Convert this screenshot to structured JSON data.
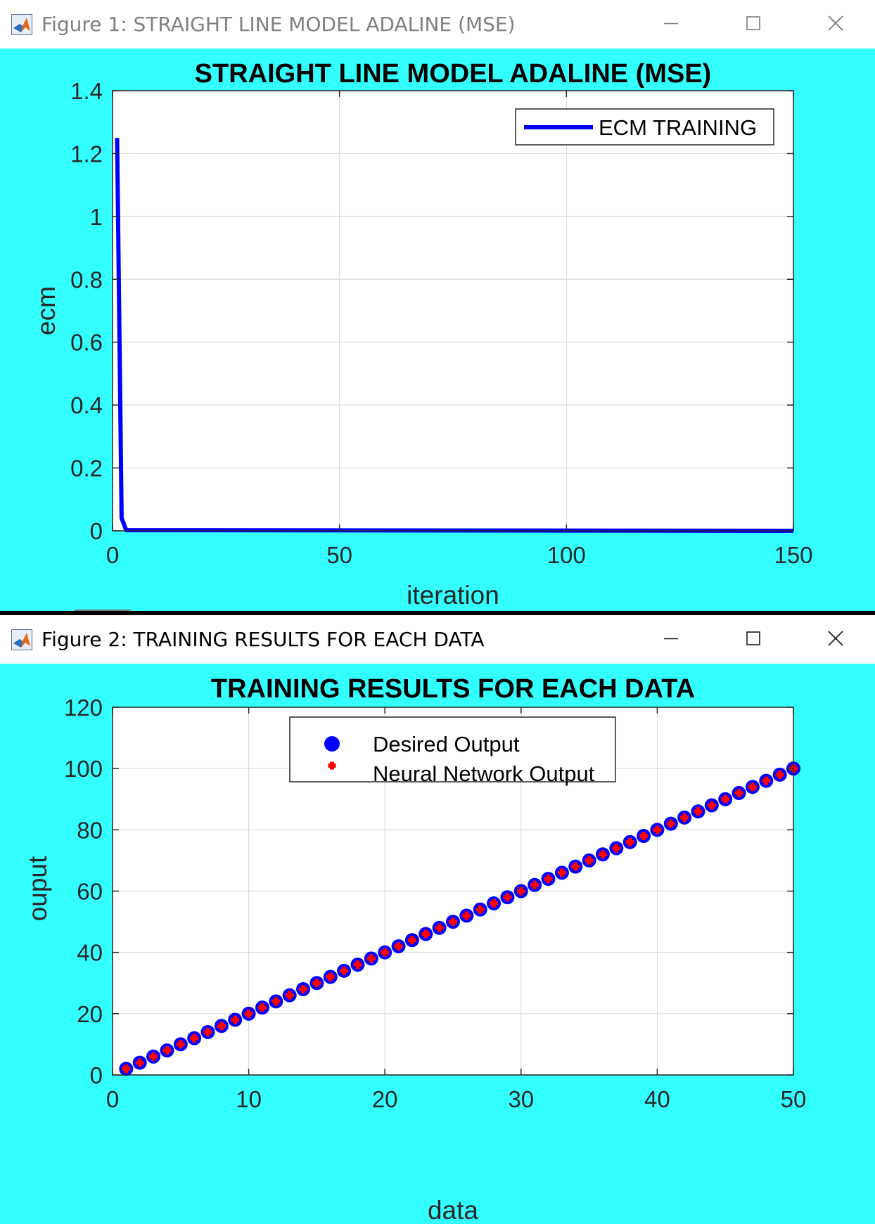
{
  "windows": [
    {
      "title": "Figure 1: STRAIGHT LINE MODEL ADALINE (MSE)",
      "state": "inactive",
      "controls": [
        "minimize",
        "maximize",
        "close"
      ]
    },
    {
      "title": "Figure 2: TRAINING RESULTS FOR EACH DATA",
      "state": "active",
      "controls": [
        "minimize",
        "maximize",
        "close"
      ]
    }
  ],
  "colors": {
    "figure_background": "#33ffff",
    "axes_background": "#ffffff",
    "grid": "#dcdcdc",
    "line_series": "#0000ff",
    "desired_marker": "#0000ff",
    "network_marker": "#ff0000"
  },
  "icons": {
    "app": "matlab-icon",
    "minimize": "minimize-icon",
    "maximize": "maximize-icon",
    "close": "close-icon"
  },
  "chart_data": [
    {
      "type": "line",
      "title": "STRAIGHT LINE MODEL ADALINE (MSE)",
      "xlabel": "iteration",
      "ylabel": "ecm",
      "xlim": [
        0,
        150
      ],
      "ylim": [
        0,
        1.4
      ],
      "xticks": [
        0,
        50,
        100,
        150
      ],
      "yticks": [
        0,
        0.2,
        0.4,
        0.6,
        0.8,
        1,
        1.2,
        1.4
      ],
      "xtick_labels": [
        "0",
        "50",
        "100",
        "150"
      ],
      "ytick_labels": [
        "0",
        "0.2",
        "0.4",
        "0.6",
        "0.8",
        "1",
        "1.2",
        "1.4"
      ],
      "grid": true,
      "legend_position": "top-right",
      "series": [
        {
          "name": "ECM TRAINING",
          "color": "#0000ff",
          "x": [
            1,
            2,
            3,
            150
          ],
          "y": [
            1.25,
            0.04,
            0.002,
            0
          ]
        }
      ]
    },
    {
      "type": "scatter",
      "title": "TRAINING RESULTS FOR EACH DATA",
      "xlabel": "data",
      "ylabel": "ouput",
      "xlim": [
        0,
        50
      ],
      "ylim": [
        0,
        120
      ],
      "xticks": [
        0,
        10,
        20,
        30,
        40,
        50
      ],
      "yticks": [
        0,
        20,
        40,
        60,
        80,
        100,
        120
      ],
      "xtick_labels": [
        "0",
        "10",
        "20",
        "30",
        "40",
        "50"
      ],
      "ytick_labels": [
        "0",
        "20",
        "40",
        "60",
        "80",
        "100",
        "120"
      ],
      "grid": true,
      "legend_position": "top-center",
      "x": [
        1,
        2,
        3,
        4,
        5,
        6,
        7,
        8,
        9,
        10,
        11,
        12,
        13,
        14,
        15,
        16,
        17,
        18,
        19,
        20,
        21,
        22,
        23,
        24,
        25,
        26,
        27,
        28,
        29,
        30,
        31,
        32,
        33,
        34,
        35,
        36,
        37,
        38,
        39,
        40,
        41,
        42,
        43,
        44,
        45,
        46,
        47,
        48,
        49,
        50
      ],
      "series": [
        {
          "name": "Desired Output",
          "marker": "circle",
          "color": "#0000ff",
          "values": [
            2,
            4,
            6,
            8,
            10,
            12,
            14,
            16,
            18,
            20,
            22,
            24,
            26,
            28,
            30,
            32,
            34,
            36,
            38,
            40,
            42,
            44,
            46,
            48,
            50,
            52,
            54,
            56,
            58,
            60,
            62,
            64,
            66,
            68,
            70,
            72,
            74,
            76,
            78,
            80,
            82,
            84,
            86,
            88,
            90,
            92,
            94,
            96,
            98,
            100
          ]
        },
        {
          "name": "Neural Network Output",
          "marker": "plus",
          "color": "#ff0000",
          "values": [
            2,
            4,
            6,
            8,
            10,
            12,
            14,
            16,
            18,
            20,
            22,
            24,
            26,
            28,
            30,
            32,
            34,
            36,
            38,
            40,
            42,
            44,
            46,
            48,
            50,
            52,
            54,
            56,
            58,
            60,
            62,
            64,
            66,
            68,
            70,
            72,
            74,
            76,
            78,
            80,
            82,
            84,
            86,
            88,
            90,
            92,
            94,
            96,
            98,
            100
          ]
        }
      ]
    }
  ]
}
